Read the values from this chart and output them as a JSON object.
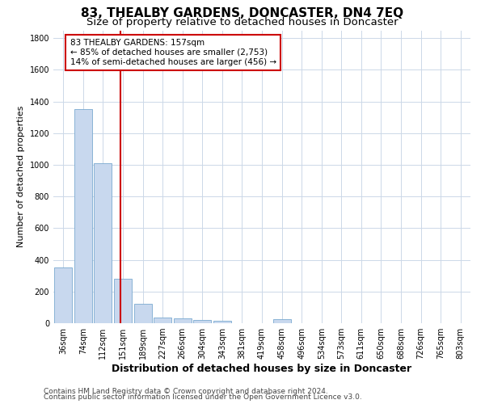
{
  "title": "83, THEALBY GARDENS, DONCASTER, DN4 7EQ",
  "subtitle": "Size of property relative to detached houses in Doncaster",
  "xlabel": "Distribution of detached houses by size in Doncaster",
  "ylabel": "Number of detached properties",
  "bin_labels": [
    "36sqm",
    "74sqm",
    "112sqm",
    "151sqm",
    "189sqm",
    "227sqm",
    "266sqm",
    "304sqm",
    "343sqm",
    "381sqm",
    "419sqm",
    "458sqm",
    "496sqm",
    "534sqm",
    "573sqm",
    "611sqm",
    "650sqm",
    "688sqm",
    "726sqm",
    "765sqm",
    "803sqm"
  ],
  "bar_values": [
    350,
    1350,
    1010,
    280,
    120,
    35,
    30,
    20,
    15,
    0,
    0,
    25,
    0,
    0,
    0,
    0,
    0,
    0,
    0,
    0,
    0
  ],
  "bar_color": "#c8d8ee",
  "bar_edge_color": "#7aaad0",
  "red_line_bin_index": 2.88,
  "vline_color": "#cc0000",
  "annotation_text": "83 THEALBY GARDENS: 157sqm\n← 85% of detached houses are smaller (2,753)\n14% of semi-detached houses are larger (456) →",
  "annotation_box_color": "#ffffff",
  "annotation_box_edge": "#cc0000",
  "ylim": [
    0,
    1850
  ],
  "yticks": [
    0,
    200,
    400,
    600,
    800,
    1000,
    1200,
    1400,
    1600,
    1800
  ],
  "footer1": "Contains HM Land Registry data © Crown copyright and database right 2024.",
  "footer2": "Contains public sector information licensed under the Open Government Licence v3.0.",
  "bg_color": "#ffffff",
  "grid_color": "#ccd8e8",
  "title_fontsize": 11,
  "subtitle_fontsize": 9.5,
  "xlabel_fontsize": 9,
  "ylabel_fontsize": 8,
  "tick_fontsize": 7,
  "footer_fontsize": 6.5,
  "annot_fontsize": 7.5
}
